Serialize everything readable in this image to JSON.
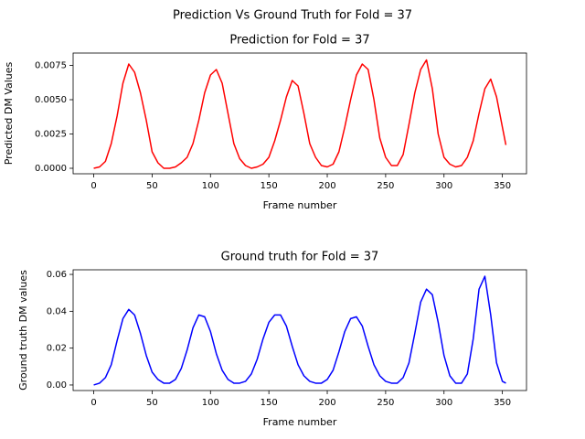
{
  "title": "Prediction Vs Ground Truth for Fold = 37",
  "chart_data": [
    {
      "type": "line",
      "title": "Prediction for Fold = 37",
      "xlabel": "Frame number",
      "ylabel": "Predicted DM Values",
      "x": [
        0,
        5,
        10,
        15,
        20,
        25,
        30,
        35,
        40,
        45,
        50,
        55,
        60,
        65,
        70,
        75,
        80,
        85,
        90,
        95,
        100,
        105,
        110,
        115,
        120,
        125,
        130,
        135,
        140,
        145,
        150,
        155,
        160,
        165,
        170,
        175,
        180,
        185,
        190,
        195,
        200,
        205,
        210,
        215,
        220,
        225,
        230,
        235,
        240,
        245,
        250,
        255,
        260,
        265,
        270,
        275,
        280,
        285,
        290,
        295,
        300,
        305,
        310,
        315,
        320,
        325,
        330,
        335,
        340,
        345,
        350,
        353
      ],
      "series": [
        {
          "name": "Prediction",
          "color": "#ff0000",
          "values": [
            0.0,
            0.0001,
            0.0005,
            0.0018,
            0.0038,
            0.0062,
            0.0076,
            0.007,
            0.0055,
            0.0035,
            0.0012,
            0.0004,
            0.0,
            0.0,
            0.0001,
            0.0004,
            0.0008,
            0.0018,
            0.0035,
            0.0055,
            0.0068,
            0.0072,
            0.0062,
            0.004,
            0.0018,
            0.0007,
            0.0002,
            0.0,
            0.0001,
            0.0003,
            0.0008,
            0.002,
            0.0035,
            0.0052,
            0.0064,
            0.006,
            0.004,
            0.0018,
            0.0008,
            0.0002,
            0.0001,
            0.0003,
            0.0012,
            0.003,
            0.005,
            0.0068,
            0.0076,
            0.0072,
            0.005,
            0.0022,
            0.0008,
            0.0002,
            0.0002,
            0.001,
            0.0032,
            0.0055,
            0.0072,
            0.0079,
            0.0058,
            0.0025,
            0.0008,
            0.0003,
            0.0001,
            0.0002,
            0.0008,
            0.002,
            0.004,
            0.0058,
            0.0065,
            0.0052,
            0.003,
            0.0017
          ]
        }
      ],
      "xlim": [
        -17.65,
        370.65
      ],
      "xticks": [
        0,
        50,
        100,
        150,
        200,
        250,
        300,
        350
      ],
      "ylim": [
        -0.0004,
        0.0084
      ],
      "yticks": [
        {
          "value": 0,
          "label": "0.0000"
        },
        {
          "value": 0.0025,
          "label": "0.0025"
        },
        {
          "value": 0.005,
          "label": "0.0050"
        },
        {
          "value": 0.0075,
          "label": "0.0075"
        }
      ]
    },
    {
      "type": "line",
      "title": "Ground truth for Fold = 37",
      "xlabel": "Frame number",
      "ylabel": "Ground truth DM values",
      "x": [
        0,
        5,
        10,
        15,
        20,
        25,
        30,
        35,
        40,
        45,
        50,
        55,
        60,
        65,
        70,
        75,
        80,
        85,
        90,
        95,
        100,
        105,
        110,
        115,
        120,
        125,
        130,
        135,
        140,
        145,
        150,
        155,
        160,
        165,
        170,
        175,
        180,
        185,
        190,
        195,
        200,
        205,
        210,
        215,
        220,
        225,
        230,
        235,
        240,
        245,
        250,
        255,
        260,
        265,
        270,
        275,
        280,
        285,
        290,
        295,
        300,
        305,
        310,
        315,
        320,
        325,
        330,
        335,
        340,
        345,
        350,
        353
      ],
      "series": [
        {
          "name": "Ground truth",
          "color": "#0000ff",
          "values": [
            0.0,
            0.001,
            0.004,
            0.011,
            0.024,
            0.036,
            0.041,
            0.038,
            0.028,
            0.016,
            0.007,
            0.003,
            0.001,
            0.001,
            0.003,
            0.009,
            0.019,
            0.031,
            0.038,
            0.037,
            0.029,
            0.017,
            0.008,
            0.003,
            0.001,
            0.001,
            0.002,
            0.006,
            0.014,
            0.025,
            0.034,
            0.038,
            0.038,
            0.032,
            0.021,
            0.011,
            0.005,
            0.002,
            0.001,
            0.001,
            0.003,
            0.008,
            0.018,
            0.029,
            0.036,
            0.037,
            0.032,
            0.021,
            0.011,
            0.005,
            0.002,
            0.001,
            0.001,
            0.004,
            0.012,
            0.028,
            0.045,
            0.052,
            0.049,
            0.034,
            0.016,
            0.005,
            0.001,
            0.001,
            0.006,
            0.025,
            0.052,
            0.059,
            0.038,
            0.012,
            0.002,
            0.001
          ]
        }
      ],
      "xlim": [
        -17.65,
        370.65
      ],
      "xticks": [
        0,
        50,
        100,
        150,
        200,
        250,
        300,
        350
      ],
      "ylim": [
        -0.003,
        0.0625
      ],
      "yticks": [
        {
          "value": 0,
          "label": "0.00"
        },
        {
          "value": 0.02,
          "label": "0.02"
        },
        {
          "value": 0.04,
          "label": "0.04"
        },
        {
          "value": 0.06,
          "label": "0.06"
        }
      ]
    }
  ]
}
